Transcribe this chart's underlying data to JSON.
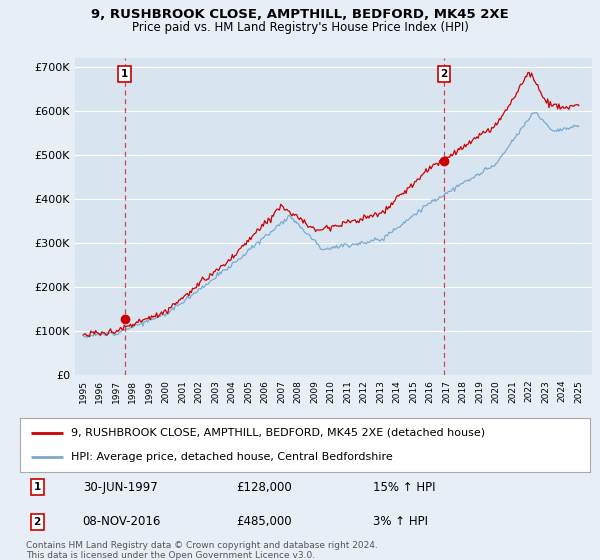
{
  "title": "9, RUSHBROOK CLOSE, AMPTHILL, BEDFORD, MK45 2XE",
  "subtitle": "Price paid vs. HM Land Registry's House Price Index (HPI)",
  "ylim": [
    0,
    720000
  ],
  "yticks": [
    0,
    100000,
    200000,
    300000,
    400000,
    500000,
    600000,
    700000
  ],
  "ytick_labels": [
    "£0",
    "£100K",
    "£200K",
    "£300K",
    "£400K",
    "£500K",
    "£600K",
    "£700K"
  ],
  "bg_color": "#e8eef5",
  "plot_bg_color": "#d8e5f0",
  "grid_color": "#ffffff",
  "marker1_year": 1997.5,
  "marker1_value": 128000,
  "marker1_label": "1",
  "marker2_year": 2016.83,
  "marker2_value": 485000,
  "marker2_label": "2",
  "legend_line1": "9, RUSHBROOK CLOSE, AMPTHILL, BEDFORD, MK45 2XE (detached house)",
  "legend_line2": "HPI: Average price, detached house, Central Bedfordshire",
  "ann1_date": "30-JUN-1997",
  "ann1_price": "£128,000",
  "ann1_hpi": "15% ↑ HPI",
  "ann2_date": "08-NOV-2016",
  "ann2_price": "£485,000",
  "ann2_hpi": "3% ↑ HPI",
  "footer": "Contains HM Land Registry data © Crown copyright and database right 2024.\nThis data is licensed under the Open Government Licence v3.0.",
  "red_line_color": "#cc0000",
  "blue_line_color": "#7aaad0",
  "title_fontsize": 9.5,
  "subtitle_fontsize": 8.5,
  "axis_fontsize": 8,
  "legend_fontsize": 8,
  "ann_fontsize": 8.5
}
